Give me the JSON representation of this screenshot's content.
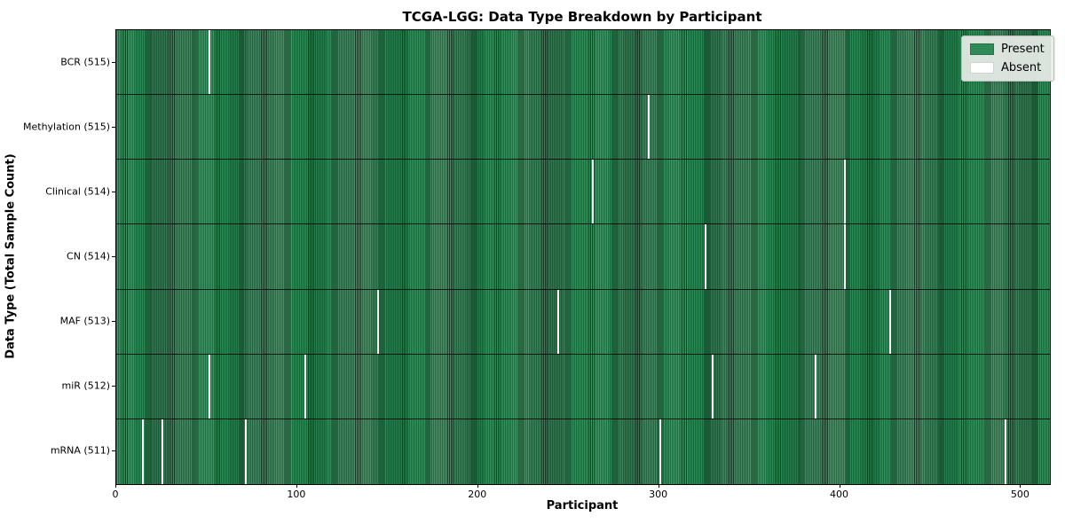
{
  "chart_data": {
    "type": "heatmap",
    "title": "TCGA-LGG: Data Type Breakdown by Participant",
    "xlabel": "Participant",
    "ylabel": "Data Type (Total Sample Count)",
    "x_ticks": [
      0,
      100,
      200,
      300,
      400,
      500
    ],
    "xlim": [
      0,
      516
    ],
    "n_participants": 516,
    "grid": false,
    "legend_position": "upper right",
    "colors": {
      "present": "#2e8b57",
      "absent": "#ffffff",
      "row_separator": "#1a1a1a",
      "plot_border": "#000000"
    },
    "legend": [
      {
        "label": "Present",
        "color": "#2e8b57"
      },
      {
        "label": "Absent",
        "color": "#ffffff"
      }
    ],
    "rows": [
      {
        "label": "BCR (515)",
        "data_type": "BCR",
        "present_count": 515,
        "absent_participants": [
          51
        ]
      },
      {
        "label": "Methylation (515)",
        "data_type": "Methylation",
        "present_count": 515,
        "absent_participants": [
          294
        ]
      },
      {
        "label": "Clinical (514)",
        "data_type": "Clinical",
        "present_count": 514,
        "absent_participants": [
          263,
          402
        ]
      },
      {
        "label": "CN (514)",
        "data_type": "CN",
        "present_count": 514,
        "absent_participants": [
          325,
          402
        ]
      },
      {
        "label": "MAF (513)",
        "data_type": "MAF",
        "present_count": 513,
        "absent_participants": [
          144,
          244,
          427
        ]
      },
      {
        "label": "miR (512)",
        "data_type": "miR",
        "present_count": 512,
        "absent_participants": [
          51,
          104,
          329,
          386
        ]
      },
      {
        "label": "mRNA (511)",
        "data_type": "mRNA",
        "present_count": 511,
        "absent_participants": [
          14,
          25,
          71,
          300,
          491
        ]
      }
    ]
  }
}
